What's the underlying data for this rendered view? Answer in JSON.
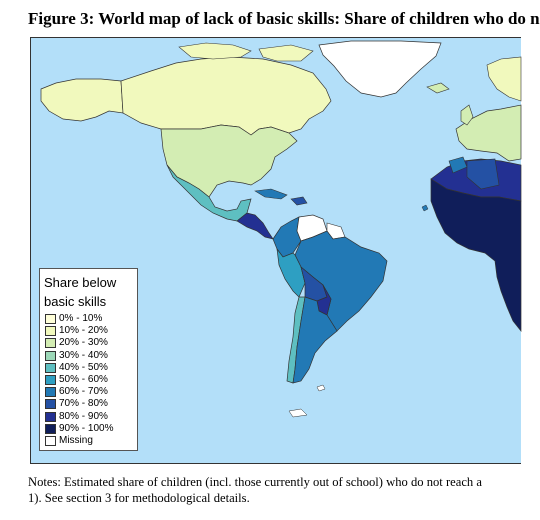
{
  "title": "Figure 3: World map of lack of basic skills: Share of children who do n",
  "legend": {
    "title_line1": "Share below",
    "title_line2": "basic skills",
    "items": [
      {
        "label": "0% - 10%",
        "color": "#ffffd9"
      },
      {
        "label": "10% - 20%",
        "color": "#f1f9bd"
      },
      {
        "label": "20% - 30%",
        "color": "#d3edb3"
      },
      {
        "label": "30% - 40%",
        "color": "#9cd8b8"
      },
      {
        "label": "40% - 50%",
        "color": "#5ebfc1"
      },
      {
        "label": "50% - 60%",
        "color": "#2e9fc2"
      },
      {
        "label": "60% - 70%",
        "color": "#2279b5"
      },
      {
        "label": "70% - 80%",
        "color": "#2451a4"
      },
      {
        "label": "80% - 90%",
        "color": "#233092"
      },
      {
        "label": "90% - 100%",
        "color": "#101e5a"
      },
      {
        "label": "Missing",
        "color": "#ffffff"
      }
    ]
  },
  "notes": {
    "line1": "Notes: Estimated share of children (incl. those currently out of school) who do not reach a",
    "line2": "1). See section 3 for methodological details."
  },
  "colors": {
    "ocean": "#b3dff9"
  }
}
